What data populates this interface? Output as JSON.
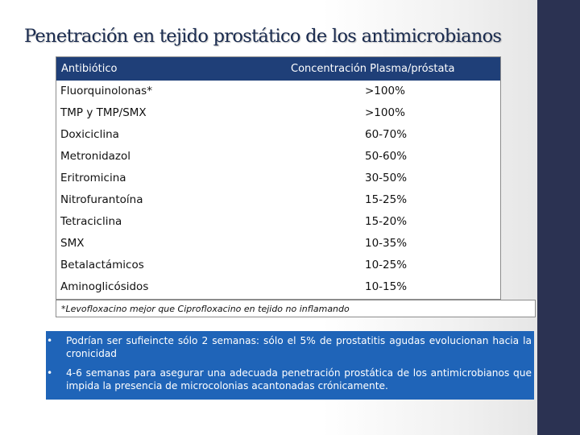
{
  "slide": {
    "title": "Penetración en tejido prostático de los antimicrobianos",
    "accent_color": "#2b3252"
  },
  "table": {
    "header": {
      "left": "Antibiótico",
      "right": "Concentración Plasma/próstata",
      "color": "#1f3f78"
    },
    "rows": [
      {
        "drug": "Fluorquinolonas*",
        "value": ">100%"
      },
      {
        "drug": "TMP y TMP/SMX",
        "value": ">100%"
      },
      {
        "drug": "Doxiciclina",
        "value": "60-70%"
      },
      {
        "drug": "Metronidazol",
        "value": "50-60%"
      },
      {
        "drug": "Eritromicina",
        "value": "30-50%"
      },
      {
        "drug": "Nitrofurantoína",
        "value": "15-25%"
      },
      {
        "drug": "Tetraciclina",
        "value": "15-20%"
      },
      {
        "drug": "SMX",
        "value": "10-35%"
      },
      {
        "drug": "Betalactámicos",
        "value": "10-25%"
      },
      {
        "drug": "Aminoglicósidos",
        "value": "10-15%"
      }
    ],
    "footnote": "*Levofloxacino mejor que Ciprofloxacino en tejido no inflamando"
  },
  "notes": {
    "color": "#1f64b8",
    "bullet_symbol": "•",
    "items": [
      "Podrían ser sufieincte sólo 2 semanas: sólo el 5% de prostatitis agudas evolucionan hacia la cronicidad",
      "4-6 semanas para asegurar una adecuada penetración prostática de los antimicrobianos que impida la presencia de microcolonias acantonadas crónicamente."
    ]
  }
}
